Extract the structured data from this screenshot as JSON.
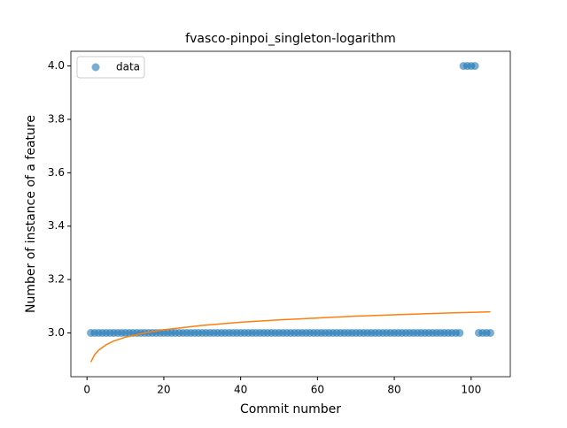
{
  "chart_data": {
    "type": "scatter",
    "title": "fvasco-pinpoi_singleton-logarithm",
    "x_label": "Commit number",
    "y_label": "Number of instance of a feature",
    "xlim": [
      -4.2,
      110.2
    ],
    "ylim": [
      2.836,
      4.055
    ],
    "xticks": [
      0,
      20,
      40,
      60,
      80,
      100
    ],
    "yticks": [
      {
        "value": 3.0,
        "label": "3.0"
      },
      {
        "value": 3.2,
        "label": "3.2"
      },
      {
        "value": 3.4,
        "label": "3.4"
      },
      {
        "value": 3.6,
        "label": "3.6"
      },
      {
        "value": 3.8,
        "label": "3.8"
      },
      {
        "value": 4.0,
        "label": "4.0"
      }
    ],
    "legend": "upper left",
    "series": [
      {
        "name": "data",
        "color": "#1f77b4",
        "kind": "points",
        "x": [
          1,
          2,
          3,
          4,
          5,
          6,
          7,
          8,
          9,
          10,
          11,
          12,
          13,
          14,
          15,
          16,
          17,
          18,
          19,
          20,
          21,
          22,
          23,
          24,
          25,
          26,
          27,
          28,
          29,
          30,
          31,
          32,
          33,
          34,
          35,
          36,
          37,
          38,
          39,
          40,
          41,
          42,
          43,
          44,
          45,
          46,
          47,
          48,
          49,
          50,
          51,
          52,
          53,
          54,
          55,
          56,
          57,
          58,
          59,
          60,
          61,
          62,
          63,
          64,
          65,
          66,
          67,
          68,
          69,
          70,
          71,
          72,
          73,
          74,
          75,
          76,
          77,
          78,
          79,
          80,
          81,
          82,
          83,
          84,
          85,
          86,
          87,
          88,
          89,
          90,
          91,
          92,
          93,
          94,
          95,
          96,
          97,
          98,
          99,
          100,
          101,
          102,
          103,
          104,
          105
        ],
        "values": [
          3,
          3,
          3,
          3,
          3,
          3,
          3,
          3,
          3,
          3,
          3,
          3,
          3,
          3,
          3,
          3,
          3,
          3,
          3,
          3,
          3,
          3,
          3,
          3,
          3,
          3,
          3,
          3,
          3,
          3,
          3,
          3,
          3,
          3,
          3,
          3,
          3,
          3,
          3,
          3,
          3,
          3,
          3,
          3,
          3,
          3,
          3,
          3,
          3,
          3,
          3,
          3,
          3,
          3,
          3,
          3,
          3,
          3,
          3,
          3,
          3,
          3,
          3,
          3,
          3,
          3,
          3,
          3,
          3,
          3,
          3,
          3,
          3,
          3,
          3,
          3,
          3,
          3,
          3,
          3,
          3,
          3,
          3,
          3,
          3,
          3,
          3,
          3,
          3,
          3,
          3,
          3,
          3,
          3,
          3,
          3,
          3,
          4,
          4,
          4,
          4,
          3,
          3,
          3,
          3
        ]
      },
      {
        "color": "#ff7f0e",
        "kind": "line",
        "x": [
          1,
          2,
          3,
          5,
          7,
          10,
          15,
          20,
          30,
          40,
          50,
          60,
          70,
          80,
          90,
          100,
          105
        ],
        "values": [
          2.891,
          2.919,
          2.935,
          2.956,
          2.97,
          2.984,
          3.0,
          3.012,
          3.028,
          3.04,
          3.049,
          3.056,
          3.063,
          3.068,
          3.073,
          3.077,
          3.079
        ]
      }
    ]
  }
}
